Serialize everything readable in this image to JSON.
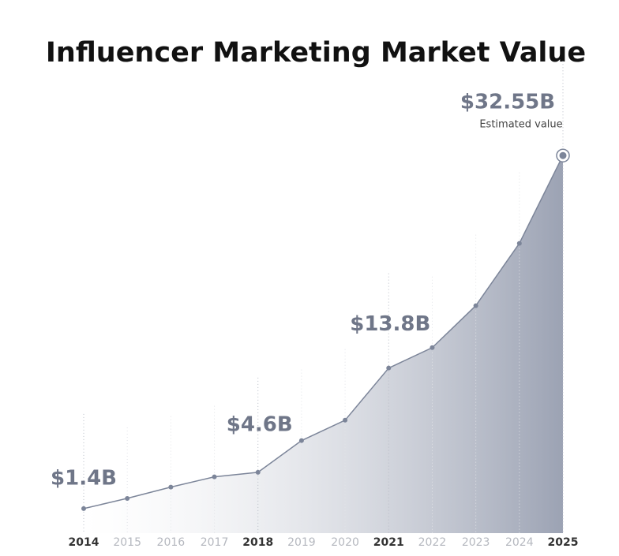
{
  "chart_data": {
    "type": "area",
    "title": "Influencer Marketing Market Value",
    "annotation": "Estimated value",
    "categories": [
      "2014",
      "2015",
      "2016",
      "2017",
      "2018",
      "2019",
      "2020",
      "2021",
      "2022",
      "2023",
      "2024",
      "2025"
    ],
    "values": [
      1.4,
      2.3,
      3.3,
      4.2,
      4.6,
      7.4,
      9.2,
      13.8,
      15.6,
      19.3,
      24.8,
      32.55
    ],
    "value_labels": [
      "$1.4B",
      null,
      null,
      null,
      "$4.6B",
      null,
      null,
      "$13.8B",
      null,
      null,
      null,
      "$32.55B"
    ],
    "color": "#7c8599",
    "ylim": [
      0,
      35
    ]
  }
}
